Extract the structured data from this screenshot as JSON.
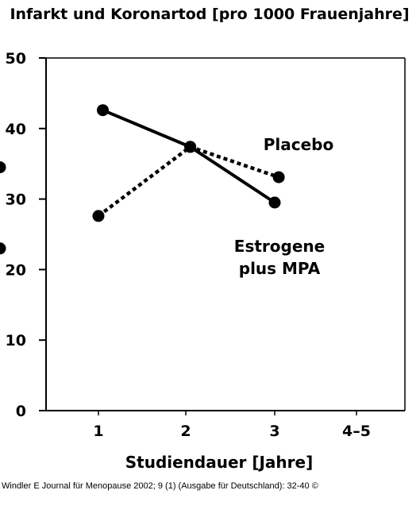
{
  "chart_data": {
    "type": "line",
    "title": "Infarkt und Koronartod [pro 1000 Frauenjahre]",
    "xlabel": "Studiendauer [Jahre]",
    "ylabel": "",
    "categories": [
      "1",
      "2",
      "3",
      "4–5"
    ],
    "yticks": [
      "0",
      "10",
      "20",
      "30",
      "40",
      "50"
    ],
    "ylim": [
      0,
      50
    ],
    "grid": false,
    "series": [
      {
        "name": "Estrogene plus MPA",
        "style": "solid",
        "x": [
          1.05,
          2.05,
          3.0,
          4.1
        ],
        "values": [
          42.6,
          37.4,
          29.5,
          23.0
        ]
      },
      {
        "name": "Placebo",
        "style": "dotted",
        "x": [
          1.0,
          2.05,
          3.05,
          4.1
        ],
        "values": [
          27.6,
          37.4,
          33.1,
          34.5
        ]
      }
    ],
    "annotations": [
      {
        "text": "Placebo",
        "series": 1
      },
      {
        "lines": [
          "Estrogene",
          "plus MPA"
        ],
        "series": 0
      }
    ],
    "colors": {
      "line": "#000000",
      "background": "#ffffff"
    }
  },
  "citation": "Windler E Journal für Menopause 2002; 9 (1) (Ausgabe für Deutschland): 32-40 ©"
}
